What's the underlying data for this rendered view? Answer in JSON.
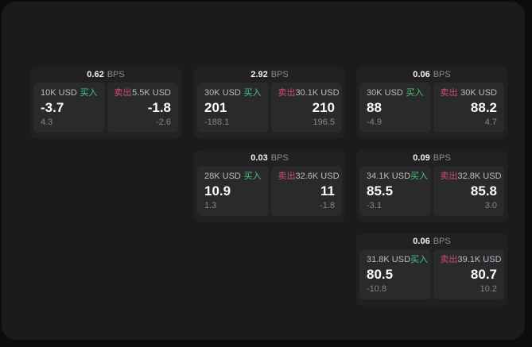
{
  "colors": {
    "buy": "#41c878",
    "sell": "#cc4e6d"
  },
  "cards": [
    {
      "bps_value": "0.62",
      "bps_unit": "BPS",
      "buy": {
        "size": "10K USD",
        "label": "买入",
        "price": "-3.7",
        "delta": "4.3"
      },
      "sell": {
        "label": "卖出",
        "size": "5.5K USD",
        "price": "-1.8",
        "delta": "-2.6"
      }
    },
    {
      "bps_value": "2.92",
      "bps_unit": "BPS",
      "buy": {
        "size": "30K USD",
        "label": "买入",
        "price": "201",
        "delta": "-188.1"
      },
      "sell": {
        "label": "卖出",
        "size": "30.1K USD",
        "price": "210",
        "delta": "196.5"
      }
    },
    {
      "bps_value": "0.06",
      "bps_unit": "BPS",
      "buy": {
        "size": "30K USD",
        "label": "买入",
        "price": "88",
        "delta": "-4.9"
      },
      "sell": {
        "label": "卖出",
        "size": "30K USD",
        "price": "88.2",
        "delta": "4.7"
      }
    },
    {
      "bps_value": "0.03",
      "bps_unit": "BPS",
      "buy": {
        "size": "28K USD",
        "label": "买入",
        "price": "10.9",
        "delta": "1.3"
      },
      "sell": {
        "label": "卖出",
        "size": "32.6K USD",
        "price": "11",
        "delta": "-1.8"
      }
    },
    {
      "bps_value": "0.09",
      "bps_unit": "BPS",
      "buy": {
        "size": "34.1K USD",
        "label": "买入",
        "price": "85.5",
        "delta": "-3.1"
      },
      "sell": {
        "label": "卖出",
        "size": "32.8K USD",
        "price": "85.8",
        "delta": "3.0"
      }
    },
    {
      "bps_value": "0.06",
      "bps_unit": "BPS",
      "buy": {
        "size": "31.8K USD",
        "label": "买入",
        "price": "80.5",
        "delta": "-10.8"
      },
      "sell": {
        "label": "卖出",
        "size": "39.1K USD",
        "price": "80.7",
        "delta": "10.2"
      }
    }
  ]
}
